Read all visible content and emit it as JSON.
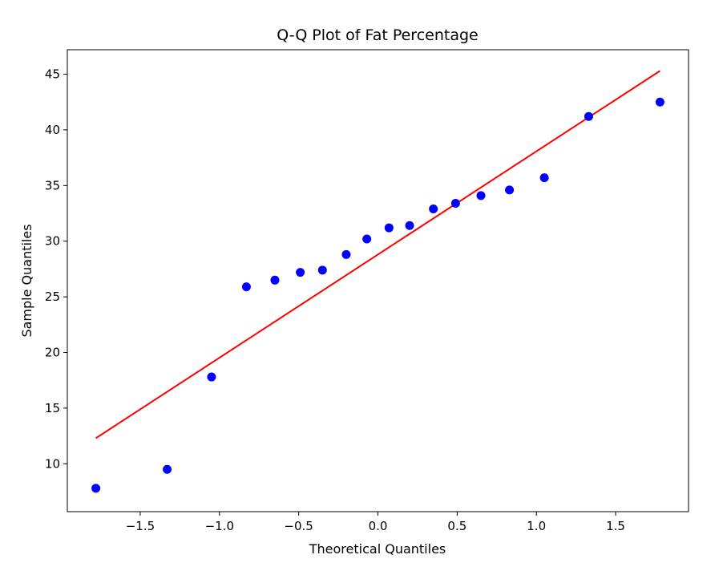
{
  "chart_data": {
    "type": "scatter",
    "title": "Q-Q Plot of Fat Percentage",
    "xlabel": "Theoretical Quantiles",
    "ylabel": "Sample Quantiles",
    "xlim": [
      -1.96,
      1.96
    ],
    "ylim": [
      5.7,
      47.2
    ],
    "xticks": [
      -1.5,
      -1.0,
      -0.5,
      0.0,
      0.5,
      1.0,
      1.5
    ],
    "xtick_labels": [
      "−1.5",
      "−1.0",
      "−0.5",
      "0.0",
      "0.5",
      "1.0",
      "1.5"
    ],
    "yticks": [
      10,
      15,
      20,
      25,
      30,
      35,
      40,
      45
    ],
    "ytick_labels": [
      "10",
      "15",
      "20",
      "25",
      "30",
      "35",
      "40",
      "45"
    ],
    "grid": false,
    "series": [
      {
        "kind": "points",
        "color": "#0000ff",
        "x": [
          -1.78,
          -1.33,
          -1.05,
          -0.83,
          -0.65,
          -0.49,
          -0.35,
          -0.2,
          -0.07,
          0.07,
          0.2,
          0.35,
          0.49,
          0.65,
          0.83,
          1.05,
          1.33,
          1.78
        ],
        "y": [
          7.8,
          9.5,
          17.8,
          25.9,
          26.5,
          27.2,
          27.4,
          28.8,
          30.2,
          31.2,
          31.4,
          32.9,
          33.4,
          34.1,
          34.6,
          35.7,
          41.2,
          42.5
        ]
      },
      {
        "kind": "reference-line",
        "color": "#ff0000",
        "x": [
          -1.78,
          1.78
        ],
        "y": [
          12.3,
          45.3
        ]
      }
    ]
  }
}
